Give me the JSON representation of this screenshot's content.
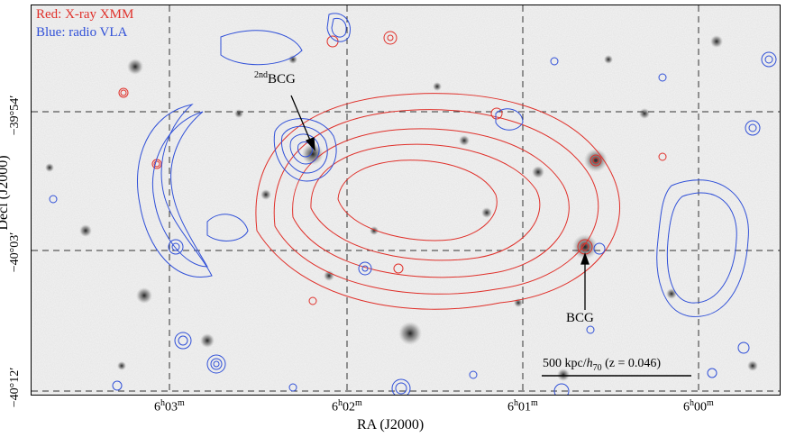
{
  "legend": {
    "red": "Red: X-ray XMM",
    "blue": "Blue: radio VLA"
  },
  "annotations": {
    "second_bcg_sup": "2nd",
    "second_bcg_text": "BCG",
    "bcg": "BCG",
    "scale_pre": "500 kpc/",
    "scale_h": "h",
    "scale_sub": "70",
    "scale_post": " (z = 0.046)"
  },
  "x_axis": {
    "label": "RA (J2000)",
    "ticks": [
      {
        "h": "6",
        "hs": "h",
        "m": "03",
        "ms": "m"
      },
      {
        "h": "6",
        "hs": "h",
        "m": "02",
        "ms": "m"
      },
      {
        "h": "6",
        "hs": "h",
        "m": "01",
        "ms": "m"
      },
      {
        "h": "6",
        "hs": "h",
        "m": "00",
        "ms": "m"
      }
    ]
  },
  "y_axis": {
    "label": "Decl (J2000)",
    "ticks": [
      "−39°54′",
      "−40°03′",
      "−40°12′"
    ]
  },
  "colors": {
    "xray": "#e0302a",
    "radio": "#3050d8",
    "background": "#f3f3f3"
  }
}
